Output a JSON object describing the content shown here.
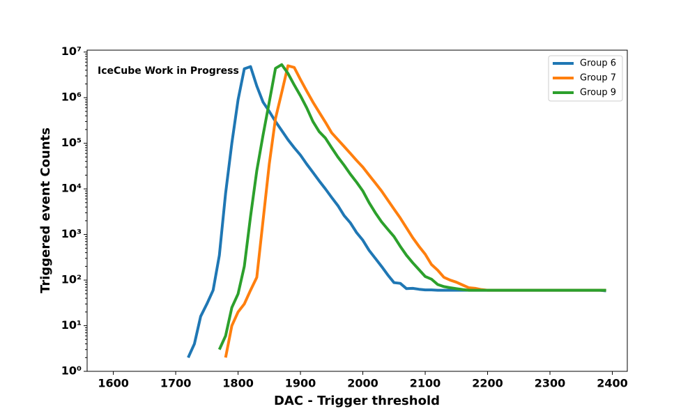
{
  "chart_data": {
    "type": "line",
    "xlabel": "DAC - Trigger threshold",
    "ylabel": "Triggered event Counts",
    "annotation": "IceCube Work in Progress",
    "log_y": true,
    "legend": "upper right",
    "xlim": [
      1558,
      2424
    ],
    "ylim": [
      1,
      11000000
    ],
    "xticks": [
      1600,
      1700,
      1800,
      1900,
      2000,
      2100,
      2200,
      2300,
      2400
    ],
    "yticks": [
      {
        "value": 1,
        "label": "10⁰"
      },
      {
        "value": 10,
        "label": "10¹"
      },
      {
        "value": 100,
        "label": "10²"
      },
      {
        "value": 1000,
        "label": "10³"
      },
      {
        "value": 10000,
        "label": "10⁴"
      },
      {
        "value": 100000,
        "label": "10⁵"
      },
      {
        "value": 1000000,
        "label": "10⁶"
      },
      {
        "value": 10000000,
        "label": "10⁷"
      }
    ],
    "x": [
      1720,
      1730,
      1740,
      1750,
      1760,
      1770,
      1780,
      1790,
      1800,
      1810,
      1820,
      1830,
      1840,
      1850,
      1860,
      1870,
      1880,
      1890,
      1900,
      1910,
      1920,
      1930,
      1940,
      1950,
      1960,
      1970,
      1980,
      1990,
      2000,
      2010,
      2020,
      2030,
      2040,
      2050,
      2060,
      2070,
      2080,
      2090,
      2100,
      2110,
      2120,
      2130,
      2140,
      2150,
      2160,
      2170,
      2180,
      2190,
      2200,
      2210,
      2220,
      2230,
      2240,
      2250,
      2260,
      2270,
      2280,
      2290,
      2300,
      2310,
      2320,
      2330,
      2340,
      2350,
      2360,
      2370,
      2380,
      2390
    ],
    "series": [
      {
        "name": "Group 6",
        "color": "#1f77b4",
        "values": [
          2,
          4,
          16,
          30,
          60,
          350,
          8000,
          100000,
          900000,
          4300000,
          4800000,
          1800000,
          800000,
          500000,
          300000,
          190000,
          120000,
          80000,
          55000,
          35000,
          23000,
          15000,
          10000,
          6500,
          4300,
          2600,
          1800,
          1100,
          750,
          450,
          300,
          200,
          130,
          88,
          85,
          65,
          66,
          63,
          61,
          61,
          60,
          60,
          60,
          60,
          60,
          60,
          60,
          60,
          60,
          60,
          60,
          60,
          60,
          60,
          60,
          60,
          60,
          60,
          60,
          60,
          60,
          60,
          60,
          60,
          60,
          60,
          60,
          58
        ]
      },
      {
        "name": "Group 7",
        "color": "#ff7f0e",
        "values": [
          null,
          null,
          null,
          null,
          null,
          null,
          2,
          10,
          20,
          30,
          60,
          115,
          2000,
          35000,
          350000,
          1300000,
          5000000,
          4600000,
          2500000,
          1400000,
          800000,
          480000,
          290000,
          170000,
          120000,
          85000,
          60000,
          42000,
          30000,
          20000,
          13500,
          9000,
          5700,
          3600,
          2300,
          1400,
          850,
          550,
          370,
          220,
          165,
          115,
          100,
          90,
          78,
          68,
          66,
          62,
          60,
          60,
          60,
          60,
          60,
          60,
          60,
          60,
          60,
          60,
          60,
          60,
          60,
          60,
          60,
          60,
          60,
          60,
          60,
          60
        ]
      },
      {
        "name": "Group 9",
        "color": "#2ca02c",
        "values": [
          null,
          null,
          null,
          null,
          null,
          3,
          6,
          25,
          50,
          200,
          2500,
          25000,
          150000,
          800000,
          4400000,
          5300000,
          3400000,
          1900000,
          1100000,
          600000,
          300000,
          180000,
          130000,
          80000,
          50000,
          33000,
          21000,
          14000,
          9000,
          5000,
          3000,
          1900,
          1300,
          900,
          550,
          350,
          240,
          170,
          120,
          105,
          80,
          72,
          68,
          65,
          62,
          60,
          60,
          60,
          60,
          60,
          60,
          60,
          60,
          60,
          60,
          60,
          60,
          60,
          60,
          60,
          60,
          60,
          60,
          60,
          60,
          60,
          60,
          60
        ]
      }
    ]
  }
}
